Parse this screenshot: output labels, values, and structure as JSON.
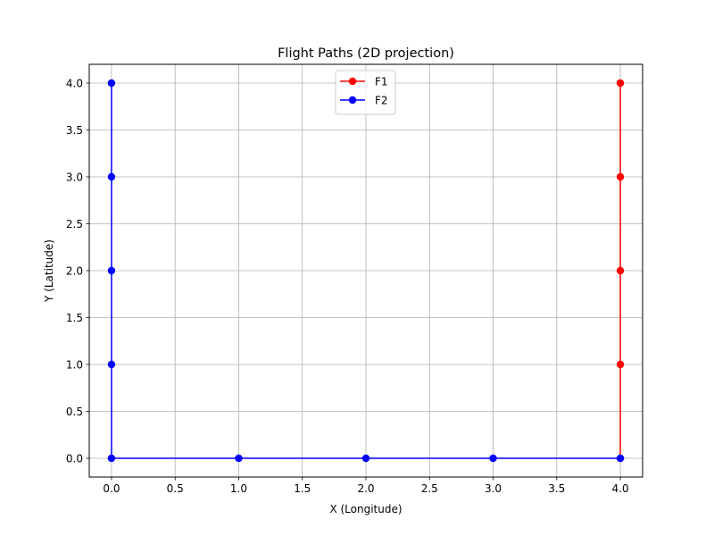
{
  "chart_data": {
    "type": "line",
    "title": "Flight Paths (2D projection)",
    "xlabel": "X (Longitude)",
    "ylabel": "Y (Latitude)",
    "xlim": [
      -0.175,
      4.175
    ],
    "ylim": [
      -0.2,
      4.2
    ],
    "xticks": [
      0.0,
      0.5,
      1.0,
      1.5,
      2.0,
      2.5,
      3.0,
      3.5,
      4.0
    ],
    "xtick_labels": [
      "0.0",
      "0.5",
      "1.0",
      "1.5",
      "2.0",
      "2.5",
      "3.0",
      "3.5",
      "4.0"
    ],
    "yticks": [
      0.0,
      0.5,
      1.0,
      1.5,
      2.0,
      2.5,
      3.0,
      3.5,
      4.0
    ],
    "ytick_labels": [
      "0.0",
      "0.5",
      "1.0",
      "1.5",
      "2.0",
      "2.5",
      "3.0",
      "3.5",
      "4.0"
    ],
    "grid": true,
    "legend_position": "top-center",
    "series": [
      {
        "name": "F1",
        "color": "#ff0000",
        "marker": "circle",
        "x": [
          4,
          4,
          4,
          4,
          4
        ],
        "y": [
          4,
          3,
          2,
          1,
          0
        ]
      },
      {
        "name": "F2",
        "color": "#0000ff",
        "marker": "circle",
        "x": [
          0,
          0,
          0,
          0,
          0,
          1,
          2,
          3,
          4
        ],
        "y": [
          4,
          3,
          2,
          1,
          0,
          0,
          0,
          0,
          0
        ]
      }
    ]
  }
}
